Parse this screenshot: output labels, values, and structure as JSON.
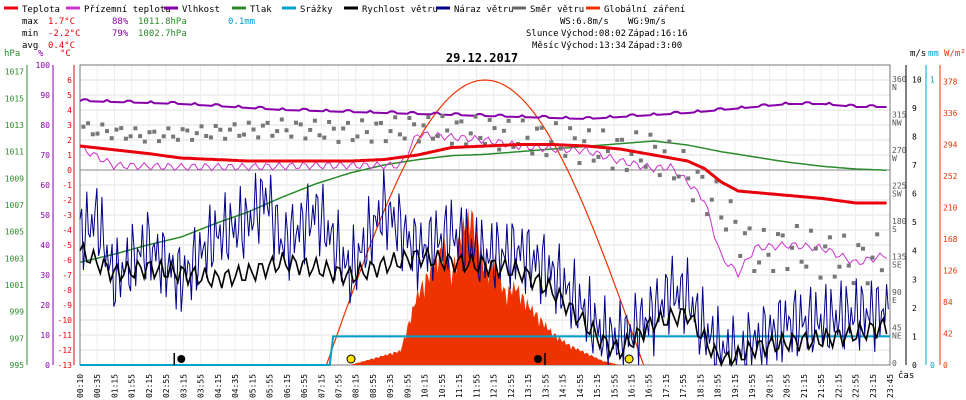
{
  "chart_data": {
    "type": "line",
    "title": "29.12.2017",
    "legend": [
      {
        "name": "Teplota",
        "color": "#e8000b"
      },
      {
        "name": "Přízemní teplota",
        "color": "#cc33cc"
      },
      {
        "name": "Vlhkost",
        "color": "#8800aa"
      },
      {
        "name": "Tlak",
        "color": "#2a8a2a"
      },
      {
        "name": "Srážky",
        "color": "#00a0c8"
      },
      {
        "name": "Rychlost větru",
        "color": "#000000"
      },
      {
        "name": "Náraz větru",
        "color": "#000088"
      },
      {
        "name": "Směr větru",
        "color": "#666666"
      },
      {
        "name": "Globální záření",
        "color": "#ee3300"
      }
    ],
    "stats": {
      "max": {
        "label": "max",
        "temp": "1.7°C",
        "hum": "88%",
        "press": "1011.8hPa",
        "rain": "0.1mm"
      },
      "min": {
        "label": "min",
        "temp": "-2.2°C",
        "hum": "79%",
        "press": "1002.7hPa"
      },
      "avg": {
        "label": "avg",
        "temp": "0.4°C"
      }
    },
    "info": {
      "ws": "WS:6.8m/s",
      "wg": "WG:9m/s",
      "sun_label": "Slunce",
      "sunrise": "Východ:08:02",
      "sunset": "Západ:16:16",
      "moon_label": "Měsíc",
      "moonrise": "Východ:13:34",
      "moonset": "Západ:3:00"
    },
    "axis_units": {
      "hpa": "hPa",
      "pct": "%",
      "celsius": "°C",
      "ms": "m/s",
      "mm": "mm",
      "wm2": "W/m²",
      "time": "čas"
    },
    "ylim_temp": [
      -13,
      7
    ],
    "press_ticks": [
      "1017",
      "1015",
      "1013",
      "1011",
      "1009",
      "1007",
      "1005",
      "1003",
      "1001",
      "999",
      "997",
      "995"
    ],
    "pct_ticks": [
      "100",
      "90",
      "80",
      "70",
      "60",
      "50",
      "40",
      "30",
      "20",
      "10",
      "0"
    ],
    "temp_ticks": [
      "6",
      "5",
      "4",
      "3",
      "2",
      "1",
      "0",
      "-1",
      "-2",
      "-3",
      "-4",
      "-5",
      "-6",
      "-7",
      "-8",
      "-9",
      "-10",
      "-11",
      "-12",
      "-13"
    ],
    "dir_ticks": [
      {
        "deg": "360",
        "lbl": "N"
      },
      {
        "deg": "315",
        "lbl": "NW"
      },
      {
        "deg": "270",
        "lbl": "W"
      },
      {
        "deg": "225",
        "lbl": "SW"
      },
      {
        "deg": "180",
        "lbl": "S"
      },
      {
        "deg": "135",
        "lbl": "SE"
      },
      {
        "deg": "90",
        "lbl": "E"
      },
      {
        "deg": "45",
        "lbl": "NE"
      },
      {
        "deg": "0",
        "lbl": ""
      }
    ],
    "wind_ticks": [
      "10",
      "9",
      "8",
      "7",
      "6",
      "5",
      "4",
      "3",
      "2",
      "1",
      "0"
    ],
    "rain_ticks": [
      "1",
      "0"
    ],
    "rad_ticks": [
      "378",
      "336",
      "294",
      "252",
      "210",
      "168",
      "126",
      "84",
      "42",
      "0"
    ],
    "x_ticks": [
      "00:10",
      "00:35",
      "01:15",
      "01:55",
      "02:15",
      "02:55",
      "03:15",
      "03:55",
      "04:15",
      "04:35",
      "05:15",
      "05:55",
      "06:15",
      "06:55",
      "07:15",
      "07:55",
      "08:15",
      "08:55",
      "09:35",
      "09:55",
      "10:15",
      "10:55",
      "11:15",
      "11:55",
      "12:15",
      "12:55",
      "13:15",
      "13:55",
      "14:15",
      "14:55",
      "15:15",
      "15:55",
      "16:15",
      "16:55",
      "17:15",
      "17:55",
      "18:15",
      "18:55",
      "19:15",
      "19:55",
      "20:15",
      "20:55",
      "21:15",
      "21:55",
      "22:15",
      "22:55",
      "23:15",
      "23:45"
    ],
    "series": [
      {
        "name": "Teplota",
        "x": [
          0,
          2,
          3,
          4,
          5,
          6,
          7,
          8,
          9,
          10,
          11,
          12,
          13,
          14,
          15,
          16,
          17,
          18,
          18.5,
          19,
          19.5,
          20,
          21,
          22,
          23,
          24
        ],
        "y": [
          1.6,
          1.1,
          0.8,
          0.7,
          0.6,
          0.6,
          0.6,
          0.6,
          0.7,
          1.0,
          1.5,
          1.6,
          1.7,
          1.7,
          1.6,
          1.4,
          1.0,
          0.6,
          0.1,
          -0.8,
          -1.4,
          -1.5,
          -1.7,
          -1.9,
          -2.2,
          -2.2
        ]
      },
      {
        "name": "Přízemní teplota",
        "x": [
          0,
          1,
          3,
          5,
          7,
          8.5,
          9.5,
          10,
          11,
          12,
          13,
          14,
          15,
          16,
          17,
          17.5,
          18,
          18.5,
          19,
          19.5,
          20,
          21,
          22,
          23,
          24
        ],
        "y": [
          1.5,
          0.3,
          0.2,
          0.2,
          0.3,
          0.3,
          0.3,
          2.4,
          2.2,
          2.0,
          1.6,
          1.4,
          1.3,
          0.6,
          0.1,
          0.2,
          -0.8,
          -2.0,
          -5.8,
          -6.9,
          -5.2,
          -5.0,
          -5.2,
          -6.2,
          -5.6
        ]
      },
      {
        "name": "Vlhkost",
        "x": [
          0,
          3,
          6,
          9,
          12,
          15,
          18,
          19,
          20,
          21,
          22,
          23,
          24
        ],
        "y": [
          88,
          87,
          85,
          84,
          83,
          82,
          84,
          85,
          86,
          87,
          87,
          86,
          86
        ]
      },
      {
        "name": "Tlak",
        "x": [
          0,
          1,
          2,
          3,
          4,
          5,
          6,
          7,
          8,
          9,
          10,
          11,
          12,
          13,
          14,
          15,
          16,
          17,
          18,
          19,
          20,
          21,
          22,
          23,
          24
        ],
        "y": [
          1002.7,
          1003.3,
          1004.0,
          1004.6,
          1005.6,
          1006.5,
          1007.6,
          1008.6,
          1009.4,
          1010.0,
          1010.4,
          1010.7,
          1010.8,
          1011.0,
          1011.2,
          1011.4,
          1011.6,
          1011.8,
          1011.5,
          1011.0,
          1010.6,
          1010.2,
          1009.9,
          1009.7,
          1009.6
        ]
      },
      {
        "name": "Srážky",
        "x": [
          0,
          7.4,
          7.5,
          24
        ],
        "y": [
          0,
          0,
          0.1,
          0.1
        ]
      },
      {
        "name": "Globální záření",
        "x": [
          8.0,
          9.5,
          10.0,
          10.4,
          10.8,
          11.0,
          11.3,
          11.6,
          12.0,
          12.3,
          12.6,
          12.9,
          13.2,
          13.6,
          14.0,
          14.5,
          15.0,
          15.5,
          16.0
        ],
        "y": [
          0,
          18,
          90,
          120,
          150,
          110,
          170,
          190,
          120,
          130,
          90,
          100,
          80,
          60,
          40,
          25,
          15,
          5,
          0
        ]
      },
      {
        "name": "Rychlost větru",
        "x": [
          0,
          1,
          2,
          3,
          4,
          5,
          6,
          7,
          8,
          9,
          10,
          11,
          12,
          13,
          14,
          15,
          15.5,
          16,
          17,
          18,
          18.5,
          19,
          19.5,
          20,
          21,
          22,
          23,
          24
        ],
        "y": [
          4.0,
          3.2,
          3.4,
          3.2,
          3.0,
          3.2,
          3.6,
          3.4,
          3.1,
          3.5,
          3.8,
          3.6,
          3.5,
          3.3,
          2.6,
          1.4,
          0.8,
          0.5,
          1.5,
          1.8,
          0.9,
          0.1,
          0.3,
          0.6,
          0.8,
          0.9,
          1.1,
          1.4
        ]
      },
      {
        "name": "Náraz větru",
        "x": [
          0,
          0.5,
          1,
          2,
          3,
          4,
          5,
          5.5,
          6,
          7,
          8,
          9,
          10,
          11,
          12,
          13,
          14,
          14.5,
          15,
          15.5,
          16,
          17,
          17.5,
          18,
          18.5,
          19,
          19.5,
          20,
          21,
          22,
          23,
          24
        ],
        "y": [
          4.5,
          5.2,
          3.0,
          4.2,
          3.0,
          4.5,
          5.0,
          6.0,
          4.2,
          5.4,
          3.2,
          5.5,
          4.0,
          4.6,
          3.8,
          4.0,
          3.2,
          2.5,
          1.8,
          1.0,
          0.9,
          1.8,
          2.6,
          2.4,
          1.2,
          0.5,
          0.3,
          0.8,
          1.5,
          1.5,
          1.8,
          1.9
        ]
      },
      {
        "name": "Směr větru",
        "x": [
          0,
          2,
          4,
          6,
          8,
          10,
          12,
          14,
          16,
          17,
          17.5,
          18,
          18.5,
          19,
          19.5,
          20,
          21,
          22,
          23,
          24
        ],
        "y": [
          300,
          290,
          295,
          300,
          295,
          300,
          295,
          285,
          270,
          270,
          260,
          240,
          220,
          200,
          170,
          140,
          150,
          140,
          130,
          140
        ]
      }
    ]
  }
}
